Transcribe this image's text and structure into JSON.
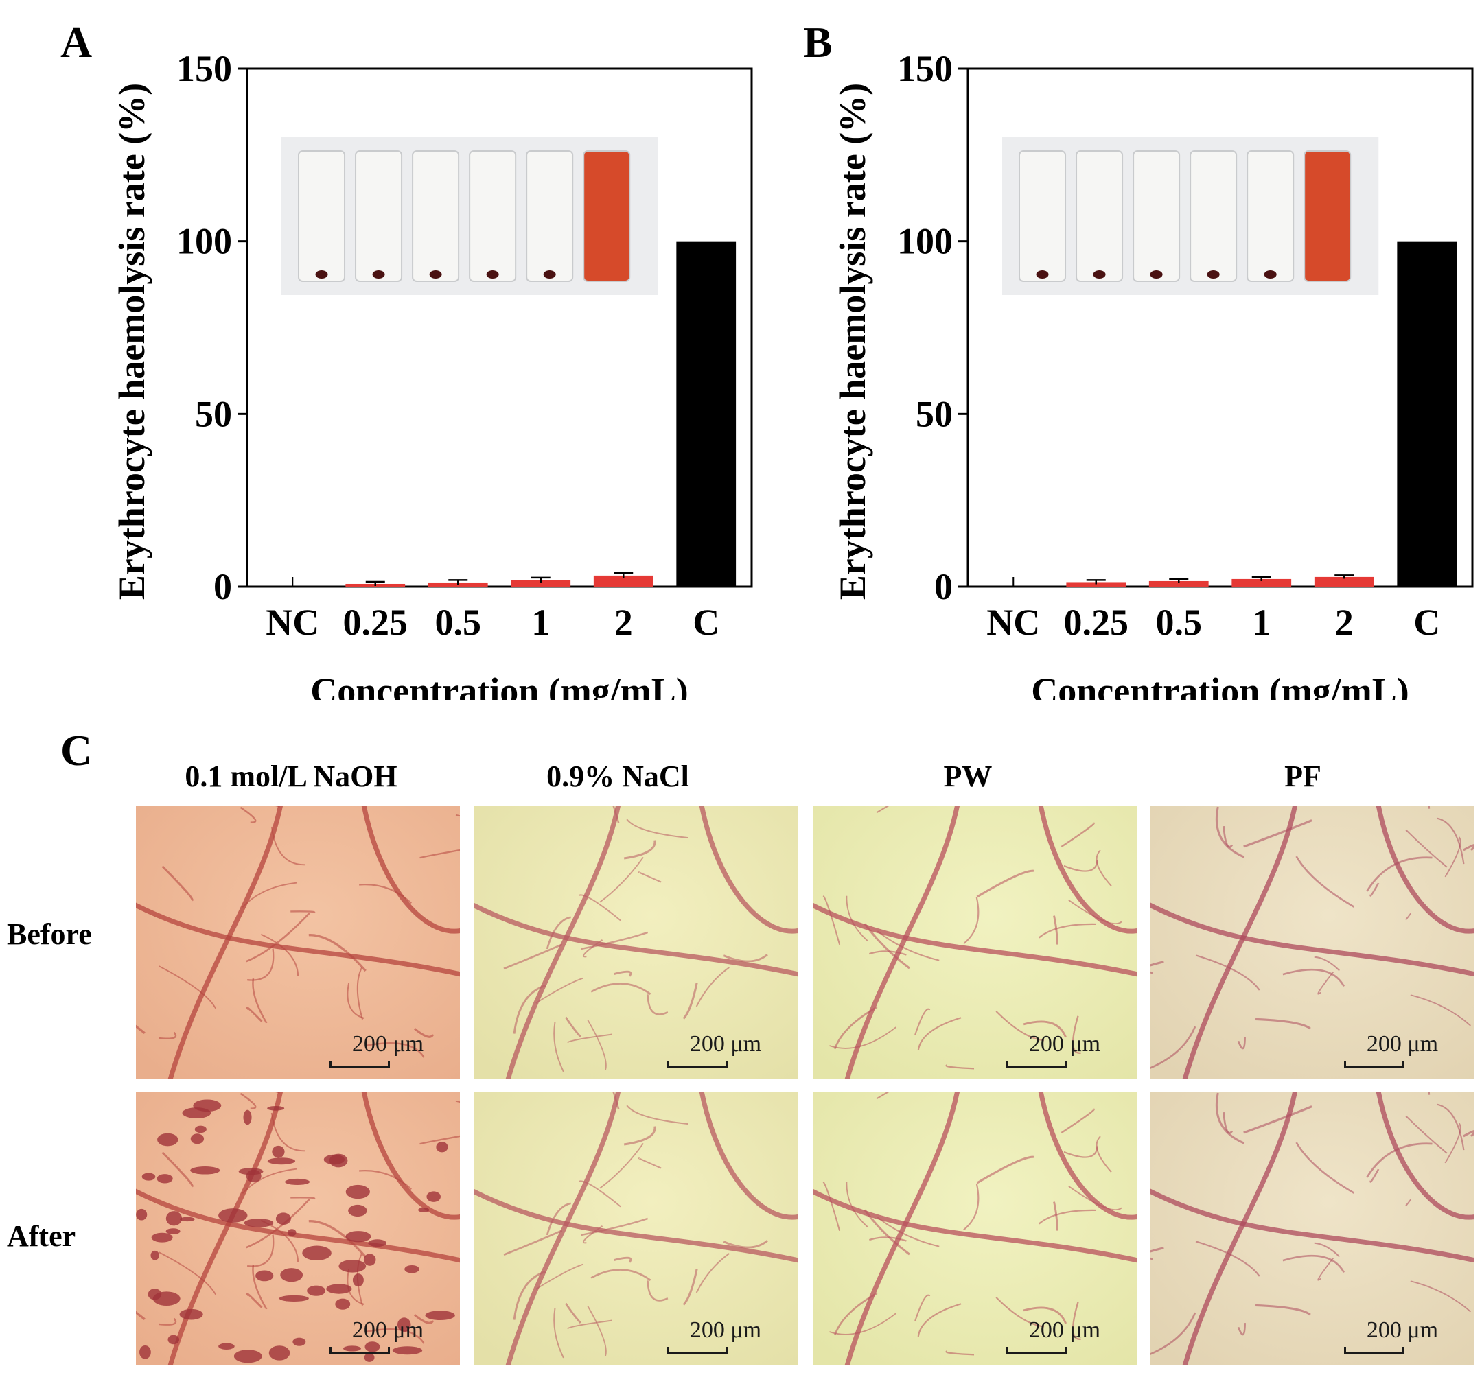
{
  "panels": {
    "A": "A",
    "B": "B",
    "C": "C"
  },
  "chart_data": [
    {
      "panel": "A",
      "type": "bar",
      "ylabel": "Erythrocyte haemolysis rate (%)",
      "xlabel": "Concentration (mg/mL)",
      "categories": [
        "NC",
        "0.25",
        "0.5",
        "1",
        "2",
        "C"
      ],
      "values": [
        0,
        0.8,
        1.2,
        1.9,
        3.2,
        100
      ],
      "errors": [
        0,
        0.6,
        0.7,
        0.7,
        0.8,
        0
      ],
      "ylim": [
        0,
        150
      ],
      "yticks": [
        0,
        50,
        100,
        150
      ],
      "colors": [
        "#e53935",
        "#e53935",
        "#e53935",
        "#e53935",
        "#e53935",
        "#000000"
      ],
      "inset": "tube photo",
      "tube_count": 6
    },
    {
      "panel": "B",
      "type": "bar",
      "ylabel": "Erythrocyte haemolysis rate (%)",
      "xlabel": "Concentration (mg/mL)",
      "categories": [
        "NC",
        "0.25",
        "0.5",
        "1",
        "2",
        "C"
      ],
      "values": [
        0,
        1.3,
        1.6,
        2.2,
        2.8,
        100
      ],
      "errors": [
        0,
        0.6,
        0.6,
        0.6,
        0.5,
        0
      ],
      "ylim": [
        0,
        150
      ],
      "yticks": [
        0,
        50,
        100,
        150
      ],
      "colors": [
        "#e53935",
        "#e53935",
        "#e53935",
        "#e53935",
        "#e53935",
        "#000000"
      ],
      "inset": "tube photo",
      "tube_count": 6
    }
  ],
  "panel_c": {
    "columns": [
      "0.1 mol/L NaOH",
      "0.9% NaCl",
      "PW",
      "PF"
    ],
    "rows": [
      "Before",
      "After"
    ],
    "scale_bar": "200 μm",
    "tints": [
      {
        "bg": "#e9ae8c",
        "light": "#f3c3a3",
        "vessel": "#b5443e"
      },
      {
        "bg": "#e4e0a8",
        "light": "#f2efbf",
        "vessel": "#b85a60"
      },
      {
        "bg": "#e4e5a8",
        "light": "#f1f2c1",
        "vessel": "#b8505c"
      },
      {
        "bg": "#e2d3b2",
        "light": "#efe4c8",
        "vessel": "#ad4a5c"
      }
    ],
    "after_damage_column": 0
  }
}
